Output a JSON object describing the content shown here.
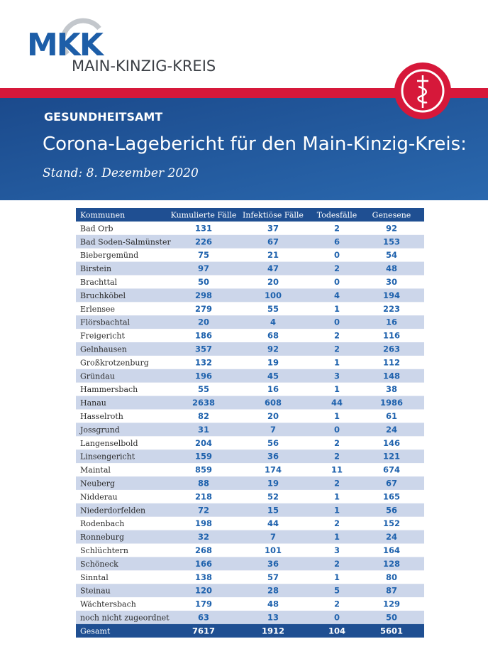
{
  "logo": {
    "mark": "MKK",
    "name": "MAIN-KINZIG-KREIS"
  },
  "header": {
    "department": "GESUNDHEITSAMT",
    "title": "Corona-Lagebericht für den Main-Kinzig-Kreis:",
    "date": "Stand: 8. Dezember 2020"
  },
  "table": {
    "header": [
      "Kommunen",
      "Kumulierte Fälle",
      "Infektiöse Fälle",
      "Todesfälle",
      "Genesene"
    ],
    "rows": [
      [
        "Bad Orb",
        131,
        37,
        2,
        92
      ],
      [
        "Bad Soden-Salmünster",
        226,
        67,
        6,
        153
      ],
      [
        "Biebergemünd",
        75,
        21,
        0,
        54
      ],
      [
        "Birstein",
        97,
        47,
        2,
        48
      ],
      [
        "Brachttal",
        50,
        20,
        0,
        30
      ],
      [
        "Bruchköbel",
        298,
        100,
        4,
        194
      ],
      [
        "Erlensee",
        279,
        55,
        1,
        223
      ],
      [
        "Flörsbachtal",
        20,
        4,
        0,
        16
      ],
      [
        "Freigericht",
        186,
        68,
        2,
        116
      ],
      [
        "Gelnhausen",
        357,
        92,
        2,
        263
      ],
      [
        "Großkrotzenburg",
        132,
        19,
        1,
        112
      ],
      [
        "Gründau",
        196,
        45,
        3,
        148
      ],
      [
        "Hammersbach",
        55,
        16,
        1,
        38
      ],
      [
        "Hanau",
        2638,
        608,
        44,
        1986
      ],
      [
        "Hasselroth",
        82,
        20,
        1,
        61
      ],
      [
        "Jossgrund",
        31,
        7,
        0,
        24
      ],
      [
        "Langenselbold",
        204,
        56,
        2,
        146
      ],
      [
        "Linsengericht",
        159,
        36,
        2,
        121
      ],
      [
        "Maintal",
        859,
        174,
        11,
        674
      ],
      [
        "Neuberg",
        88,
        19,
        2,
        67
      ],
      [
        "Nidderau",
        218,
        52,
        1,
        165
      ],
      [
        "Niederdorfelden",
        72,
        15,
        1,
        56
      ],
      [
        "Rodenbach",
        198,
        44,
        2,
        152
      ],
      [
        "Ronneburg",
        32,
        7,
        1,
        24
      ],
      [
        "Schlüchtern",
        268,
        101,
        3,
        164
      ],
      [
        "Schöneck",
        166,
        36,
        2,
        128
      ],
      [
        "Sinntal",
        138,
        57,
        1,
        80
      ],
      [
        "Steinau",
        120,
        28,
        5,
        87
      ],
      [
        "Wächtersbach",
        179,
        48,
        2,
        129
      ],
      [
        "noch nicht zugeordnet",
        63,
        13,
        0,
        50
      ]
    ],
    "total": [
      "Gesamt",
      7617,
      1912,
      104,
      5601
    ]
  }
}
